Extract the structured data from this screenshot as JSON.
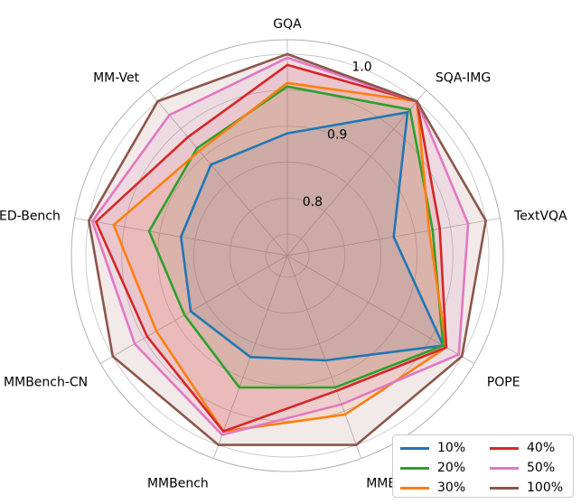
{
  "chart_data": {
    "type": "radar",
    "axes": [
      "GQA",
      "SQA-IMG",
      "TextVQA",
      "POPE",
      "MME",
      "MMBench",
      "MMBench-CN",
      "SEED-Bench",
      "MM-Vet"
    ],
    "radial_ticks": [
      "0.8",
      "0.9",
      "1.0"
    ],
    "radial_range": [
      0.72,
      1.02
    ],
    "series": [
      {
        "name": "10%",
        "color": "#1f77b4",
        "values": [
          0.89,
          0.98,
          0.87,
          0.97,
          0.875,
          0.87,
          0.875,
          0.87,
          0.885
        ]
      },
      {
        "name": "20%",
        "color": "#2ca02c",
        "values": [
          0.955,
          0.985,
          0.925,
          0.97,
          0.915,
          0.915,
          0.885,
          0.915,
          0.915
        ]
      },
      {
        "name": "30%",
        "color": "#ff7f0e",
        "values": [
          0.96,
          1.0,
          0.92,
          0.975,
          0.955,
          0.98,
          0.93,
          0.965,
          0.91
        ]
      },
      {
        "name": "40%",
        "color": "#d62728",
        "values": [
          0.985,
          1.0,
          0.935,
          0.975,
          0.92,
          0.98,
          0.945,
          0.99,
          0.935
        ]
      },
      {
        "name": "50%",
        "color": "#e377c2",
        "values": [
          0.995,
          1.0,
          0.975,
          0.995,
          0.94,
          0.985,
          0.965,
          0.995,
          0.975
        ]
      },
      {
        "name": "100%",
        "color": "#8c564b",
        "values": [
          1.0,
          1.0,
          1.0,
          1.0,
          1.0,
          1.0,
          1.0,
          1.0,
          1.0
        ]
      }
    ],
    "legend_position": "bottom-right",
    "legend_columns": 2,
    "grid": true
  }
}
